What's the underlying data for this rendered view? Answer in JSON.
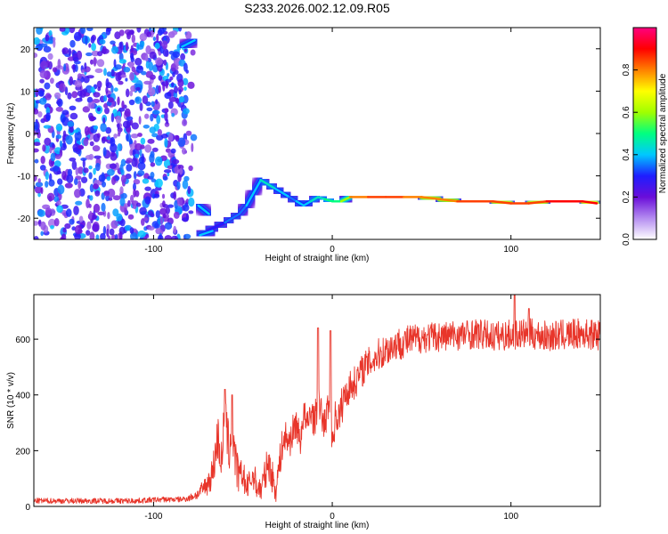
{
  "title": "S233.2026.002.12.09.R05",
  "chart_data": [
    {
      "type": "heatmap",
      "xlabel": "Height of straight line (km)",
      "ylabel": "Frequency (Hz)",
      "xlim": [
        -167,
        150
      ],
      "ylim": [
        -25,
        25
      ],
      "xticks": [
        -100,
        0,
        100
      ],
      "xtick_labels": [
        "-100",
        "0",
        "100"
      ],
      "yticks": [
        20,
        10,
        0,
        -10,
        -20
      ],
      "ytick_labels": [
        "20",
        "10",
        "0",
        "-10",
        "-20"
      ],
      "colorbar": {
        "label": "Normalized spectral amplitude",
        "range": [
          0,
          1
        ],
        "ticks": [
          0.0,
          0.2,
          0.4,
          0.6,
          0.8
        ],
        "tick_labels": [
          "0.0",
          "0.2",
          "0.4",
          "0.6",
          "0.8"
        ],
        "colors": [
          "#ffffff",
          "#b48cf0",
          "#6a0dd9",
          "#1e1eff",
          "#00c8ff",
          "#00ff80",
          "#a0ff00",
          "#ffff00",
          "#ff8000",
          "#ff0000",
          "#ff0080"
        ]
      },
      "noise_region": {
        "x": [
          -167,
          -82
        ],
        "y": [
          -25,
          25
        ]
      },
      "ridge": {
        "x": [
          -75,
          -70,
          -65,
          -60,
          -56,
          -52,
          -48,
          -44,
          -40,
          -36,
          -32,
          -28,
          -24,
          -20,
          -16,
          -12,
          -8,
          -4,
          0,
          5,
          10,
          20,
          30,
          40,
          50,
          60,
          70,
          80,
          90,
          100,
          110,
          120,
          130,
          140,
          148
        ],
        "y": [
          -24,
          -23,
          -22,
          -21,
          -20,
          -19,
          -17,
          -14,
          -11,
          -12,
          -13,
          -14,
          -15,
          -16,
          -17,
          -16,
          -15,
          -15.5,
          -16,
          -16,
          -15,
          -15,
          -15,
          -15,
          -15,
          -15.5,
          -16,
          -16,
          -16,
          -16.5,
          -16.5,
          -16,
          -16,
          -16,
          -16.5
        ],
        "amplitude": [
          0.3,
          0.3,
          0.3,
          0.35,
          0.35,
          0.35,
          0.4,
          0.4,
          0.45,
          0.45,
          0.4,
          0.4,
          0.35,
          0.4,
          0.4,
          0.45,
          0.45,
          0.5,
          0.5,
          0.6,
          0.8,
          0.85,
          0.85,
          0.8,
          0.8,
          0.8,
          0.85,
          0.85,
          0.85,
          0.85,
          0.85,
          0.9,
          0.9,
          0.9,
          0.9
        ]
      },
      "ridge_segments": [
        {
          "x": [
            -84,
            -77
          ],
          "y": [
            20.5,
            22
          ]
        },
        {
          "x": [
            -75,
            -69
          ],
          "y": [
            -17,
            -19
          ]
        },
        {
          "x": [
            -74,
            -67
          ],
          "y": [
            -24,
            -23
          ]
        }
      ]
    },
    {
      "type": "line",
      "xlabel": "Height of straight line (km)",
      "ylabel": "SNR (10 * v/v)",
      "xlim": [
        -167,
        150
      ],
      "ylim": [
        0,
        760
      ],
      "xticks": [
        -100,
        0,
        100
      ],
      "xtick_labels": [
        "-100",
        "0",
        "100"
      ],
      "yticks": [
        0,
        200,
        400,
        600
      ],
      "ytick_labels": [
        "0",
        "200",
        "400",
        "600"
      ],
      "series": [
        {
          "color": "#e8352a",
          "x": [
            -167,
            -150,
            -130,
            -110,
            -95,
            -85,
            -80,
            -75,
            -70,
            -67,
            -64,
            -62,
            -60,
            -58,
            -56,
            -54,
            -52,
            -50,
            -48,
            -46,
            -44,
            -42,
            -40,
            -38,
            -36,
            -34,
            -32,
            -30,
            -28,
            -26,
            -24,
            -22,
            -20,
            -18,
            -16,
            -14,
            -12,
            -10,
            -8,
            -6,
            -4,
            -2,
            0,
            2,
            4,
            6,
            8,
            10,
            12,
            15,
            18,
            20,
            25,
            30,
            35,
            40,
            50,
            60,
            70,
            80,
            90,
            100,
            110,
            120,
            130,
            140,
            150
          ],
          "y": [
            20,
            20,
            20,
            20,
            25,
            25,
            30,
            45,
            80,
            120,
            250,
            160,
            330,
            200,
            280,
            150,
            100,
            120,
            60,
            90,
            110,
            70,
            60,
            100,
            160,
            120,
            60,
            130,
            220,
            250,
            230,
            270,
            300,
            230,
            340,
            280,
            350,
            300,
            380,
            330,
            290,
            380,
            240,
            330,
            320,
            380,
            410,
            430,
            440,
            470,
            500,
            510,
            540,
            560,
            580,
            590,
            605,
            610,
            615,
            620,
            610,
            615,
            620,
            610,
            615,
            620,
            615
          ],
          "spikes": [
            {
              "x": -60,
              "y": 420
            },
            {
              "x": -56,
              "y": 400
            },
            {
              "x": -8,
              "y": 640
            },
            {
              "x": -1,
              "y": 630
            },
            {
              "x": 102,
              "y": 770
            },
            {
              "x": 110,
              "y": 710
            }
          ],
          "noise_amplitude": [
            10,
            10,
            10,
            10,
            10,
            10,
            12,
            20,
            40,
            60,
            90,
            80,
            100,
            100,
            90,
            80,
            60,
            60,
            50,
            50,
            50,
            50,
            50,
            60,
            60,
            60,
            60,
            60,
            60,
            60,
            60,
            60,
            60,
            60,
            60,
            60,
            60,
            60,
            60,
            60,
            60,
            60,
            70,
            70,
            70,
            70,
            60,
            60,
            60,
            60,
            60,
            60,
            60,
            60,
            60,
            60,
            55,
            55,
            55,
            55,
            55,
            55,
            55,
            55,
            55,
            55,
            55
          ]
        }
      ]
    }
  ]
}
